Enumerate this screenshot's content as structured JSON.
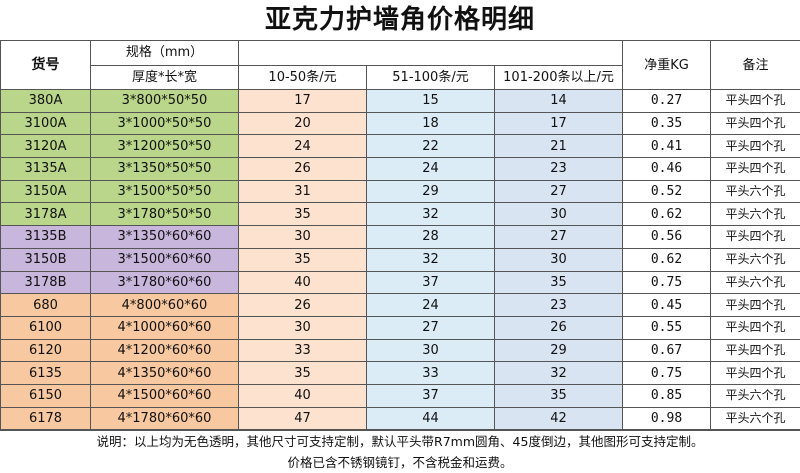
{
  "title": "亚克力护墙角价格明细",
  "headers": {
    "sku": "货号",
    "spec": "规格（mm）",
    "spec_sub": "厚度*长*宽",
    "price1": "10-50条/元",
    "price2": "51-100条/元",
    "price3": "101-200条以上/元",
    "weight": "净重KG",
    "remark": "备注"
  },
  "colors": {
    "green": "#b9d68a",
    "purple": "#c9b6dc",
    "orange": "#f8c8a0",
    "price1_bg": "#fde3cf",
    "price2_bg": "#dcecf7",
    "price3_bg": "#d9e4f2"
  },
  "rows": [
    {
      "sku": "380A",
      "spec": "3*800*50*50",
      "p1": "17",
      "p2": "15",
      "p3": "14",
      "weight": "0.27",
      "remark": "平头四个孔",
      "group": "green"
    },
    {
      "sku": "3100A",
      "spec": "3*1000*50*50",
      "p1": "20",
      "p2": "18",
      "p3": "17",
      "weight": "0.35",
      "remark": "平头四个孔",
      "group": "green"
    },
    {
      "sku": "3120A",
      "spec": "3*1200*50*50",
      "p1": "24",
      "p2": "22",
      "p3": "21",
      "weight": "0.41",
      "remark": "平头四个孔",
      "group": "green"
    },
    {
      "sku": "3135A",
      "spec": "3*1350*50*50",
      "p1": "26",
      "p2": "24",
      "p3": "23",
      "weight": "0.46",
      "remark": "平头四个孔",
      "group": "green"
    },
    {
      "sku": "3150A",
      "spec": "3*1500*50*50",
      "p1": "31",
      "p2": "29",
      "p3": "27",
      "weight": "0.52",
      "remark": "平头六个孔",
      "group": "green"
    },
    {
      "sku": "3178A",
      "spec": "3*1780*50*50",
      "p1": "35",
      "p2": "32",
      "p3": "30",
      "weight": "0.62",
      "remark": "平头六个孔",
      "group": "green"
    },
    {
      "sku": "3135B",
      "spec": "3*1350*60*60",
      "p1": "30",
      "p2": "28",
      "p3": "27",
      "weight": "0.56",
      "remark": "平头四个孔",
      "group": "purple"
    },
    {
      "sku": "3150B",
      "spec": "3*1500*60*60",
      "p1": "35",
      "p2": "32",
      "p3": "30",
      "weight": "0.62",
      "remark": "平头六个孔",
      "group": "purple"
    },
    {
      "sku": "3178B",
      "spec": "3*1780*60*60",
      "p1": "40",
      "p2": "37",
      "p3": "35",
      "weight": "0.75",
      "remark": "平头六个孔",
      "group": "purple"
    },
    {
      "sku": "680",
      "spec": "4*800*60*60",
      "p1": "26",
      "p2": "24",
      "p3": "23",
      "weight": "0.45",
      "remark": "平头四个孔",
      "group": "orange"
    },
    {
      "sku": "6100",
      "spec": "4*1000*60*60",
      "p1": "30",
      "p2": "27",
      "p3": "26",
      "weight": "0.55",
      "remark": "平头四个孔",
      "group": "orange"
    },
    {
      "sku": "6120",
      "spec": "4*1200*60*60",
      "p1": "33",
      "p2": "30",
      "p3": "29",
      "weight": "0.67",
      "remark": "平头四个孔",
      "group": "orange"
    },
    {
      "sku": "6135",
      "spec": "4*1350*60*60",
      "p1": "35",
      "p2": "33",
      "p3": "32",
      "weight": "0.75",
      "remark": "平头四个孔",
      "group": "orange"
    },
    {
      "sku": "6150",
      "spec": "4*1500*60*60",
      "p1": "40",
      "p2": "37",
      "p3": "35",
      "weight": "0.85",
      "remark": "平头六个孔",
      "group": "orange"
    },
    {
      "sku": "6178",
      "spec": "4*1780*60*60",
      "p1": "47",
      "p2": "44",
      "p3": "42",
      "weight": "0.98",
      "remark": "平头六个孔",
      "group": "orange"
    }
  ],
  "footer": {
    "line1": "说明：以上均为无色透明，其他尺寸可支持定制，默认平头带R7mm圆角、45度倒边，其他图形可支持定制。",
    "line2": "价格已含不锈钢镜钉，不含税金和运费。"
  }
}
